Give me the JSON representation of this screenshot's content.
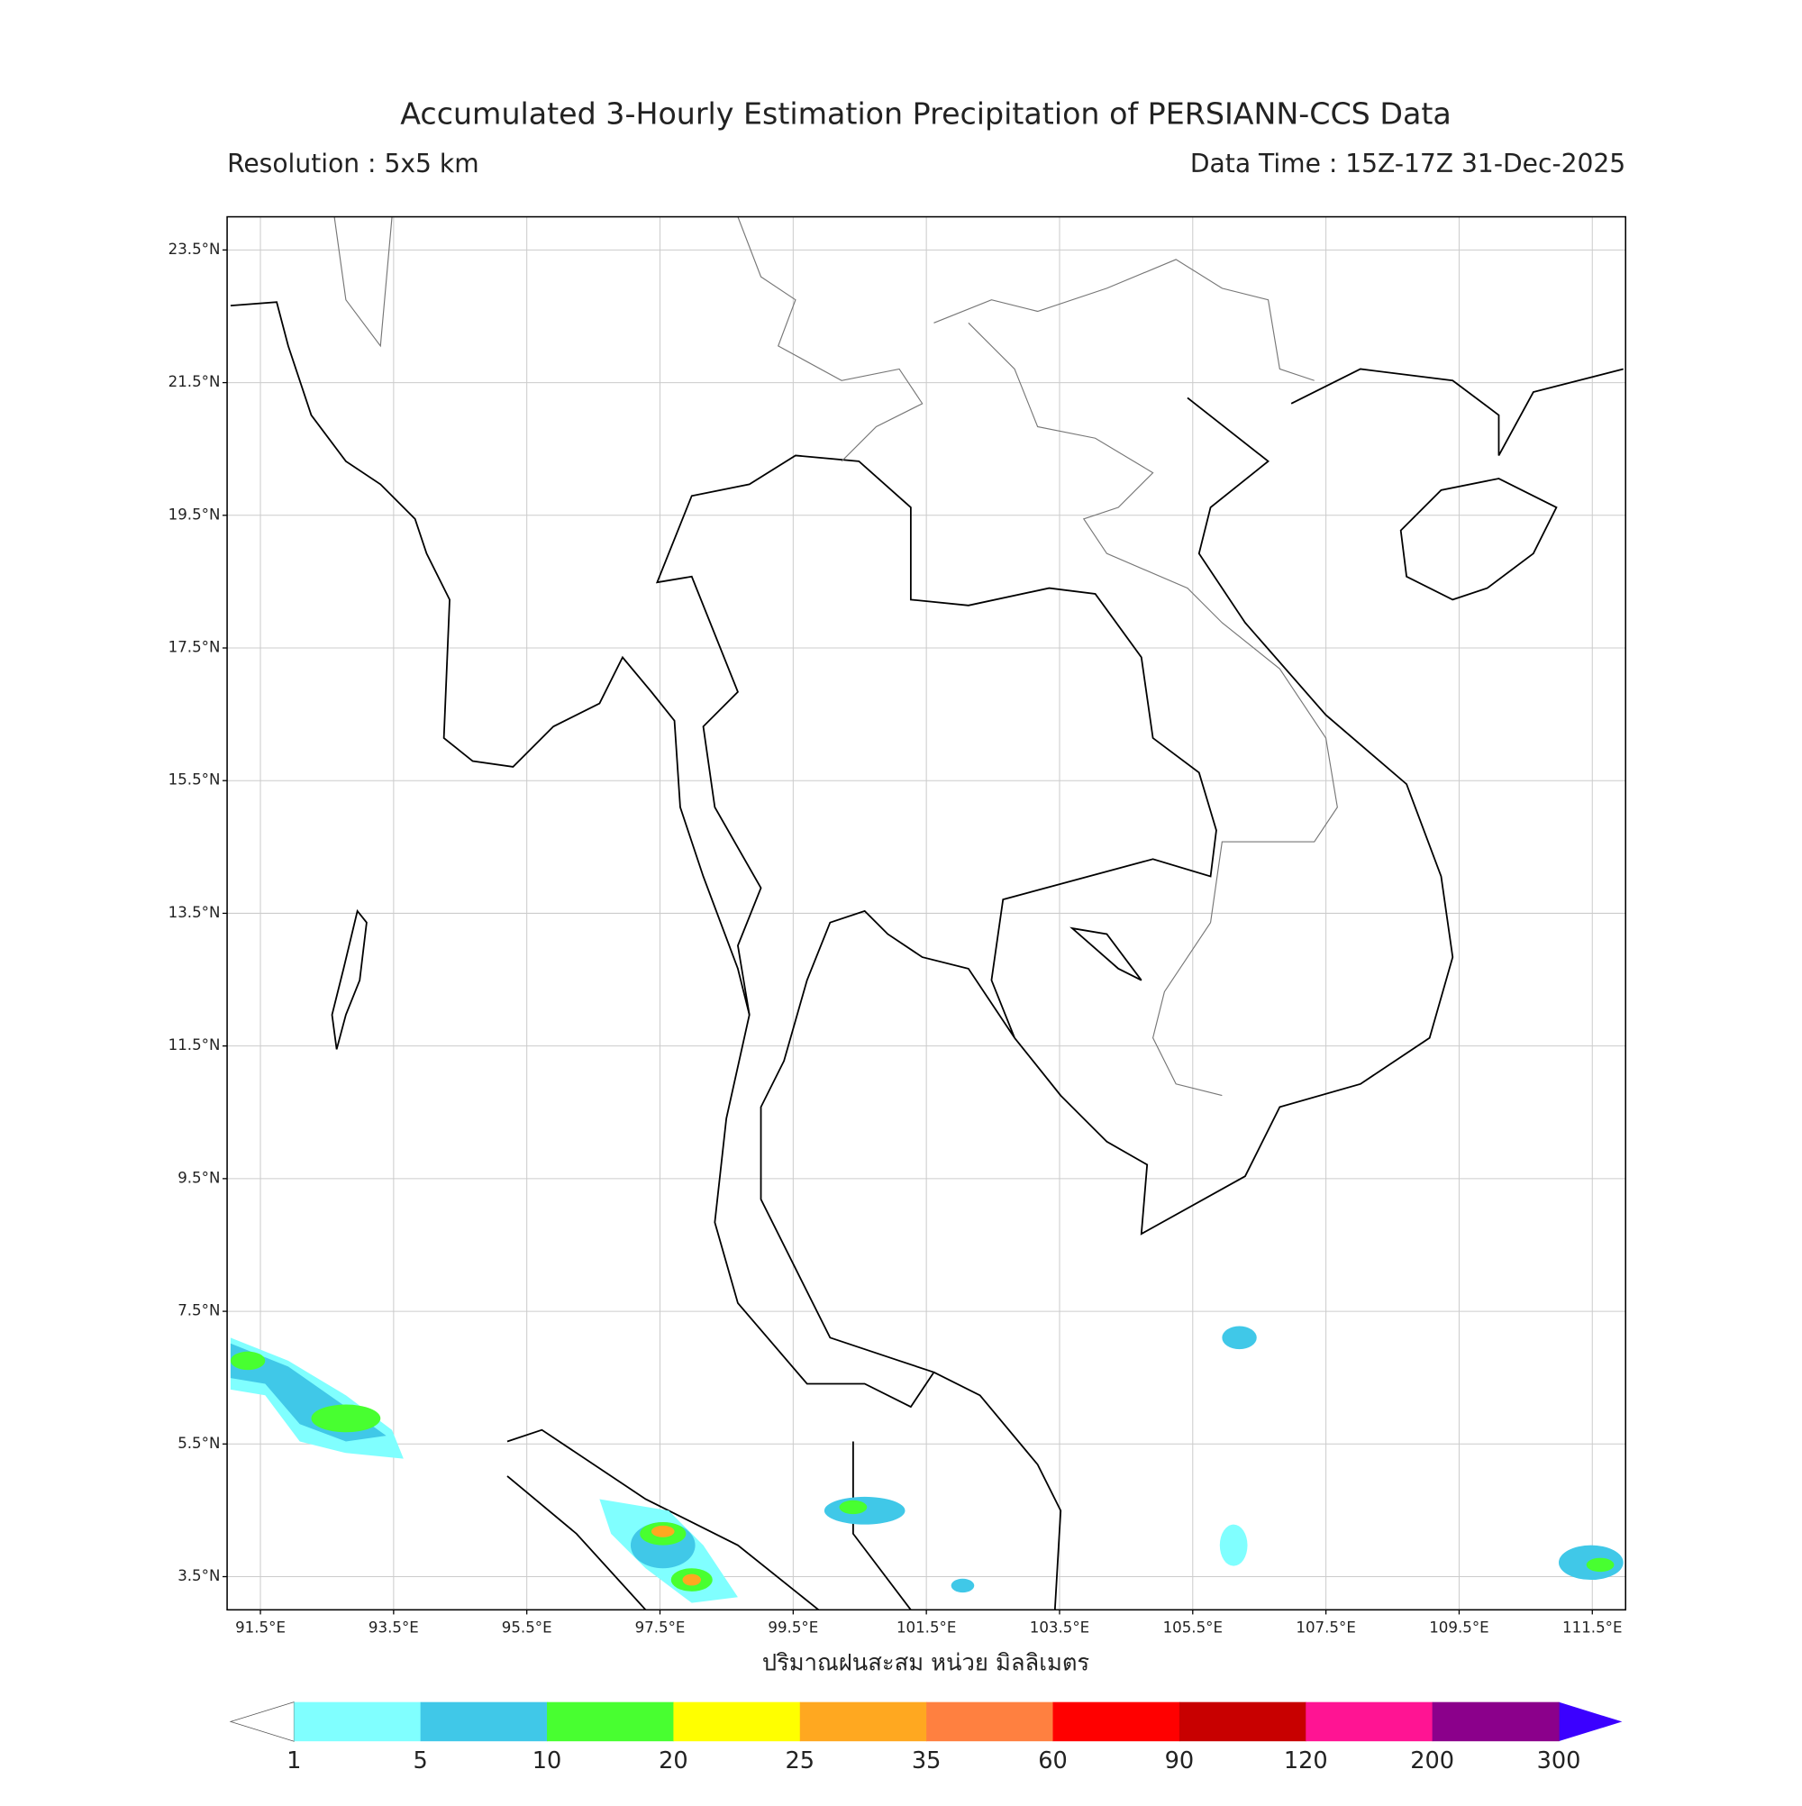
{
  "title": "Accumulated 3-Hourly Estimation Precipitation of PERSIANN-CCS Data",
  "resolution": "Resolution : 5x5 km",
  "data_time": "Data Time : 15Z-17Z 31-Dec-2025",
  "map": {
    "lon_range": [
      91,
      112
    ],
    "lat_range": [
      3,
      24
    ],
    "grid": true,
    "lon_ticks": [
      {
        "value": 91.5,
        "label": "91.5°E"
      },
      {
        "value": 93.5,
        "label": "93.5°E"
      },
      {
        "value": 95.5,
        "label": "95.5°E"
      },
      {
        "value": 97.5,
        "label": "97.5°E"
      },
      {
        "value": 99.5,
        "label": "99.5°E"
      },
      {
        "value": 101.5,
        "label": "101.5°E"
      },
      {
        "value": 103.5,
        "label": "103.5°E"
      },
      {
        "value": 105.5,
        "label": "105.5°E"
      },
      {
        "value": 107.5,
        "label": "107.5°E"
      },
      {
        "value": 109.5,
        "label": "109.5°E"
      },
      {
        "value": 111.5,
        "label": "111.5°E"
      }
    ],
    "lat_ticks": [
      {
        "value": 3.5,
        "label": "3.5°N"
      },
      {
        "value": 5.5,
        "label": "5.5°N"
      },
      {
        "value": 7.5,
        "label": "7.5°N"
      },
      {
        "value": 9.5,
        "label": "9.5°N"
      },
      {
        "value": 11.5,
        "label": "11.5°N"
      },
      {
        "value": 13.5,
        "label": "13.5°N"
      },
      {
        "value": 15.5,
        "label": "15.5°N"
      },
      {
        "value": 17.5,
        "label": "17.5°N"
      },
      {
        "value": 19.5,
        "label": "19.5°N"
      },
      {
        "value": 21.5,
        "label": "21.5°N"
      },
      {
        "value": 23.5,
        "label": "23.5°N"
      }
    ]
  },
  "colorbar": {
    "label": "ปริมาณฝนสะสม หน่วย มิลลิเมตร",
    "levels": [
      1,
      5,
      10,
      20,
      25,
      35,
      60,
      90,
      120,
      200,
      300
    ],
    "colors": [
      "#80ffff",
      "#40c8e8",
      "#48ff30",
      "#ffff00",
      "#ffa820",
      "#ff8040",
      "#ff0000",
      "#c80000",
      "#ff1493",
      "#8b008b"
    ],
    "under_color": "#ffffff",
    "over_color": "#3b00ff"
  }
}
